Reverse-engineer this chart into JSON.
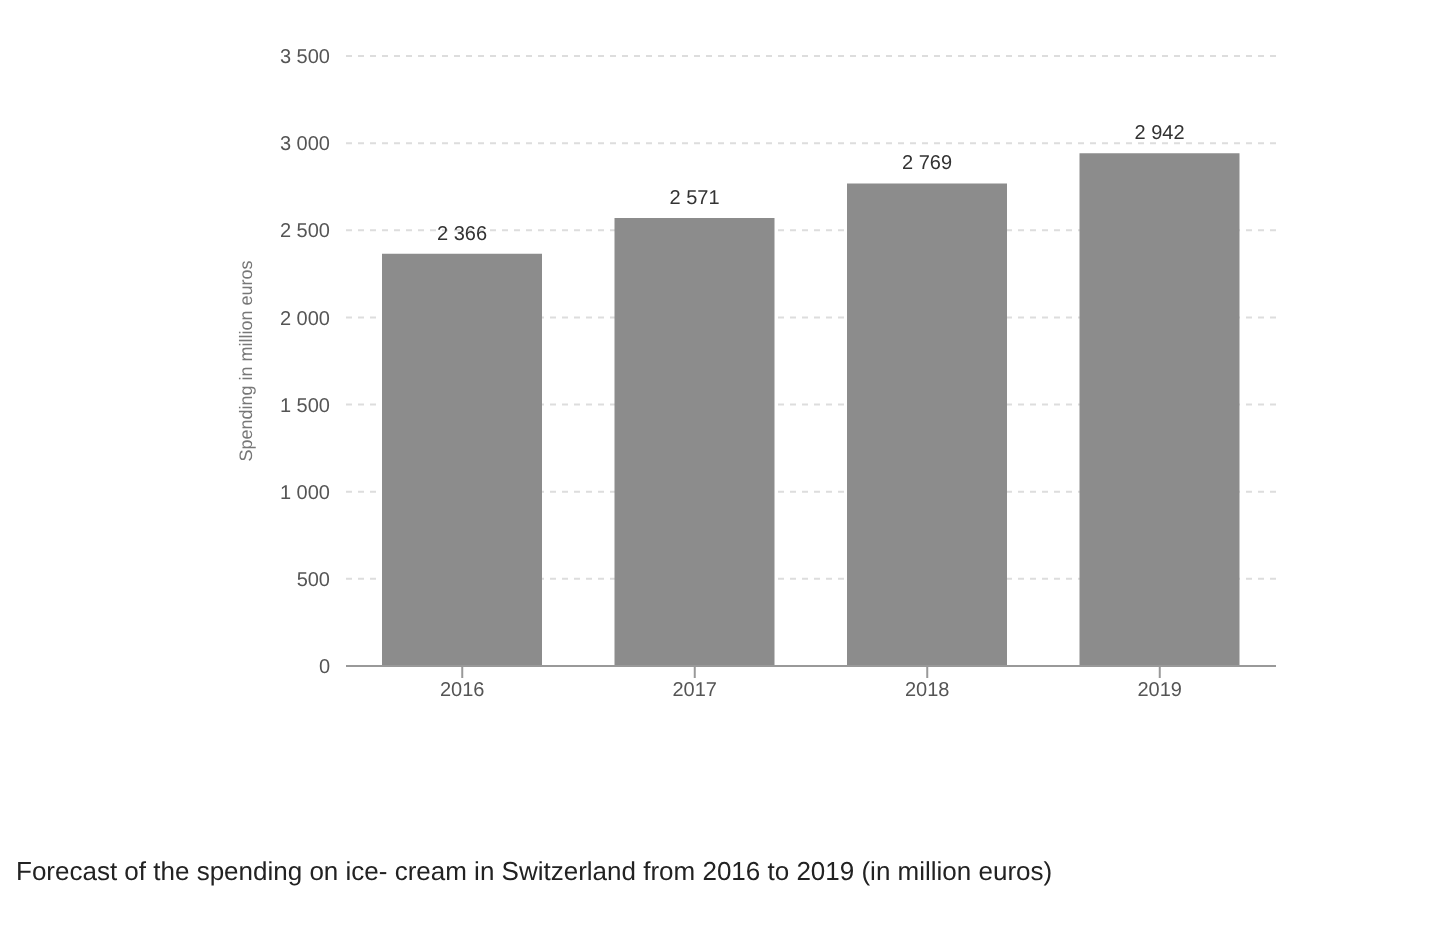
{
  "chart_data": {
    "type": "bar",
    "categories": [
      "2016",
      "2017",
      "2018",
      "2019"
    ],
    "values": [
      2366,
      2571,
      2769,
      2942
    ],
    "value_labels": [
      "2 366",
      "2 571",
      "2 769",
      "2 942"
    ],
    "color": "#8c8c8c",
    "ylabel": "Spending in million euros",
    "ylim": [
      0,
      3500
    ],
    "yticks": [
      0,
      500,
      {
        "value": 1000,
        "label": "1 000"
      },
      {
        "value": 1500,
        "label": "1 500"
      },
      {
        "value": 2000,
        "label": "2 000"
      },
      {
        "value": 2500,
        "label": "2 500"
      },
      {
        "value": 3000,
        "label": "3 000"
      },
      {
        "value": 3500,
        "label": "3 500"
      }
    ],
    "grid": "y",
    "annotations": [
      "Forecast of the spending on ice- cream in Switzerland from 2016 to 2019 (in million euros)"
    ]
  }
}
